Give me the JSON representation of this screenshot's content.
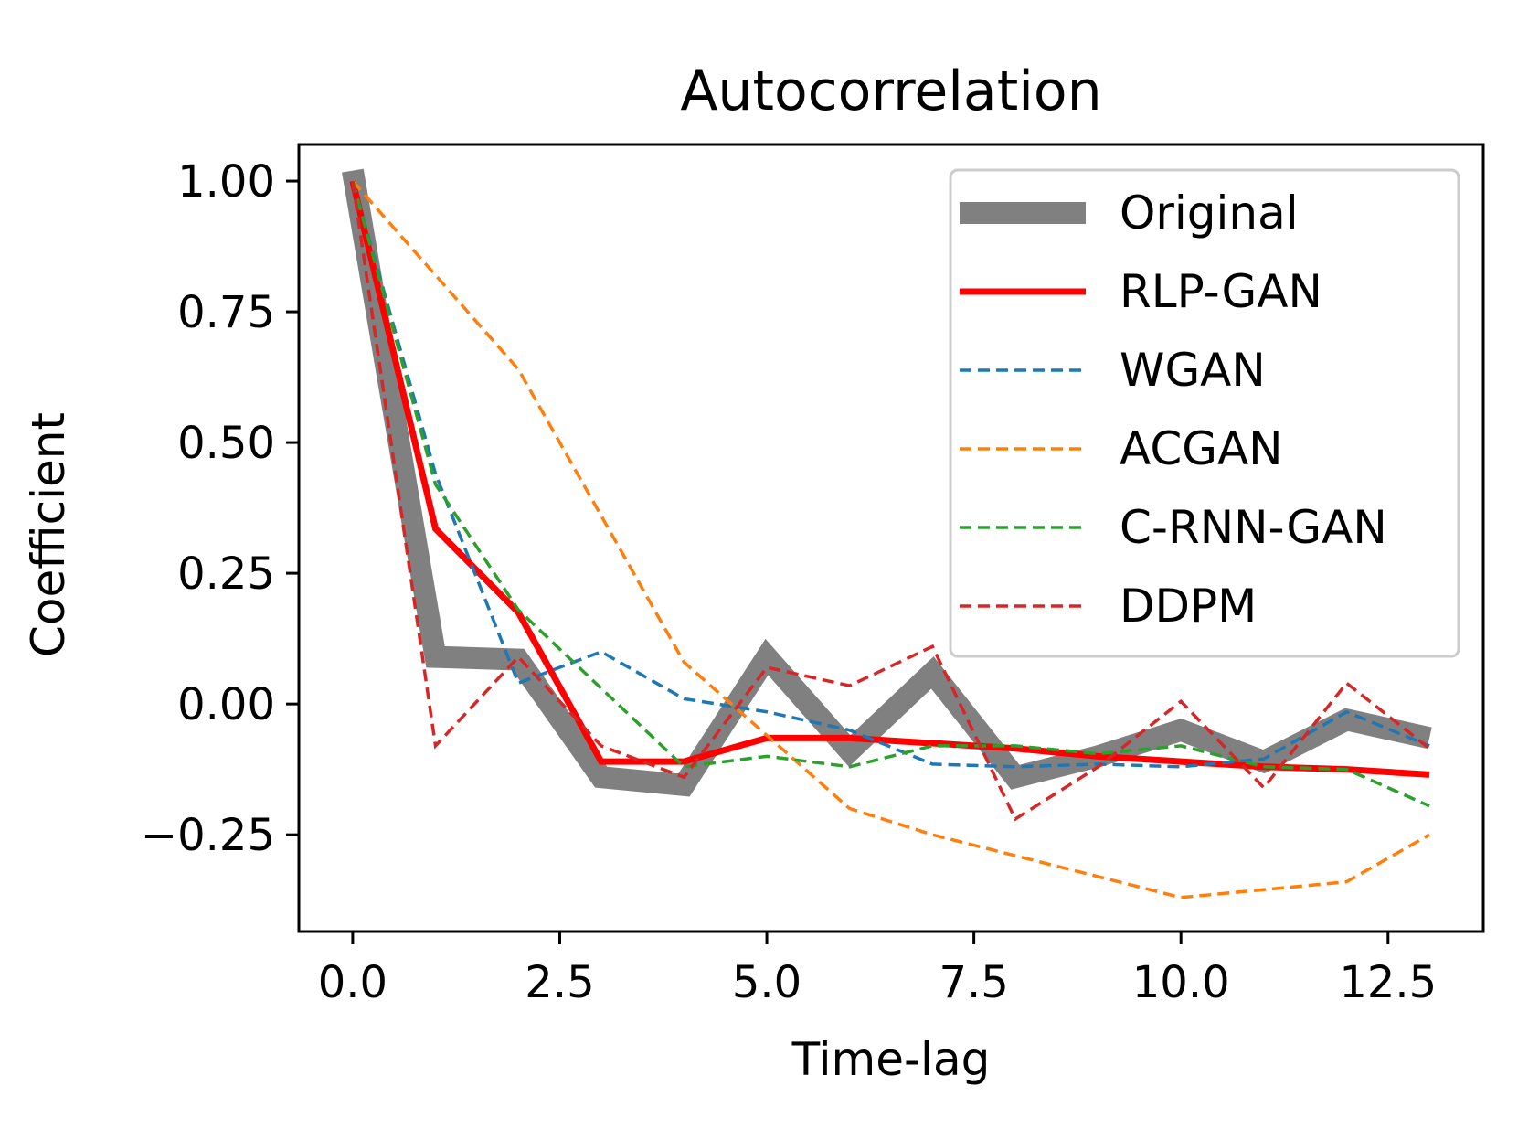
{
  "chart_data": {
    "type": "line",
    "title": "Autocorrelation",
    "xlabel": "Time-lag",
    "ylabel": "Coefficient",
    "xlim": [
      -0.65,
      13.65
    ],
    "ylim": [
      -0.435,
      1.07
    ],
    "xticks": [
      0.0,
      2.5,
      5.0,
      7.5,
      10.0,
      12.5
    ],
    "xtick_labels": [
      "0.0",
      "2.5",
      "5.0",
      "7.5",
      "10.0",
      "12.5"
    ],
    "yticks": [
      1.0,
      0.75,
      0.5,
      0.25,
      0.0,
      -0.25
    ],
    "ytick_labels": [
      "1.00",
      "0.75",
      "0.50",
      "0.25",
      "0.00",
      "−0.25"
    ],
    "legend_position": "top-right",
    "x": [
      0,
      1,
      2,
      3,
      4,
      5,
      6,
      7,
      8,
      9,
      10,
      11,
      12,
      13
    ],
    "series": [
      {
        "name": "Original",
        "color": "#808080",
        "style": "solid-thick",
        "values": [
          1.02,
          0.09,
          0.085,
          -0.14,
          -0.155,
          0.09,
          -0.09,
          0.06,
          -0.14,
          -0.1,
          -0.05,
          -0.11,
          -0.03,
          -0.065
        ]
      },
      {
        "name": "RLP-GAN",
        "color": "#ff0000",
        "style": "solid",
        "values": [
          1.0,
          0.335,
          0.175,
          -0.11,
          -0.11,
          -0.065,
          -0.065,
          -0.075,
          -0.085,
          -0.1,
          -0.11,
          -0.12,
          -0.125,
          -0.135
        ]
      },
      {
        "name": "WGAN",
        "color": "#1f77b4",
        "style": "dashed",
        "values": [
          1.0,
          0.44,
          0.04,
          0.1,
          0.01,
          -0.015,
          -0.05,
          -0.115,
          -0.12,
          -0.115,
          -0.12,
          -0.105,
          -0.015,
          -0.08
        ]
      },
      {
        "name": "ACGAN",
        "color": "#ff7f0e",
        "style": "dashed",
        "values": [
          1.0,
          0.82,
          0.64,
          0.36,
          0.08,
          -0.06,
          -0.2,
          -0.25,
          -0.29,
          -0.33,
          -0.37,
          -0.355,
          -0.34,
          -0.25
        ]
      },
      {
        "name": "C-RNN-GAN",
        "color": "#2ca02c",
        "style": "dashed",
        "values": [
          1.0,
          0.42,
          0.18,
          0.03,
          -0.12,
          -0.1,
          -0.12,
          -0.08,
          -0.08,
          -0.095,
          -0.08,
          -0.12,
          -0.125,
          -0.195
        ]
      },
      {
        "name": "DDPM",
        "color": "#d62728",
        "style": "dashed",
        "values": [
          1.0,
          -0.08,
          0.09,
          -0.08,
          -0.14,
          0.07,
          0.035,
          0.11,
          -0.22,
          -0.12,
          0.005,
          -0.16,
          0.04,
          -0.085
        ]
      }
    ]
  }
}
